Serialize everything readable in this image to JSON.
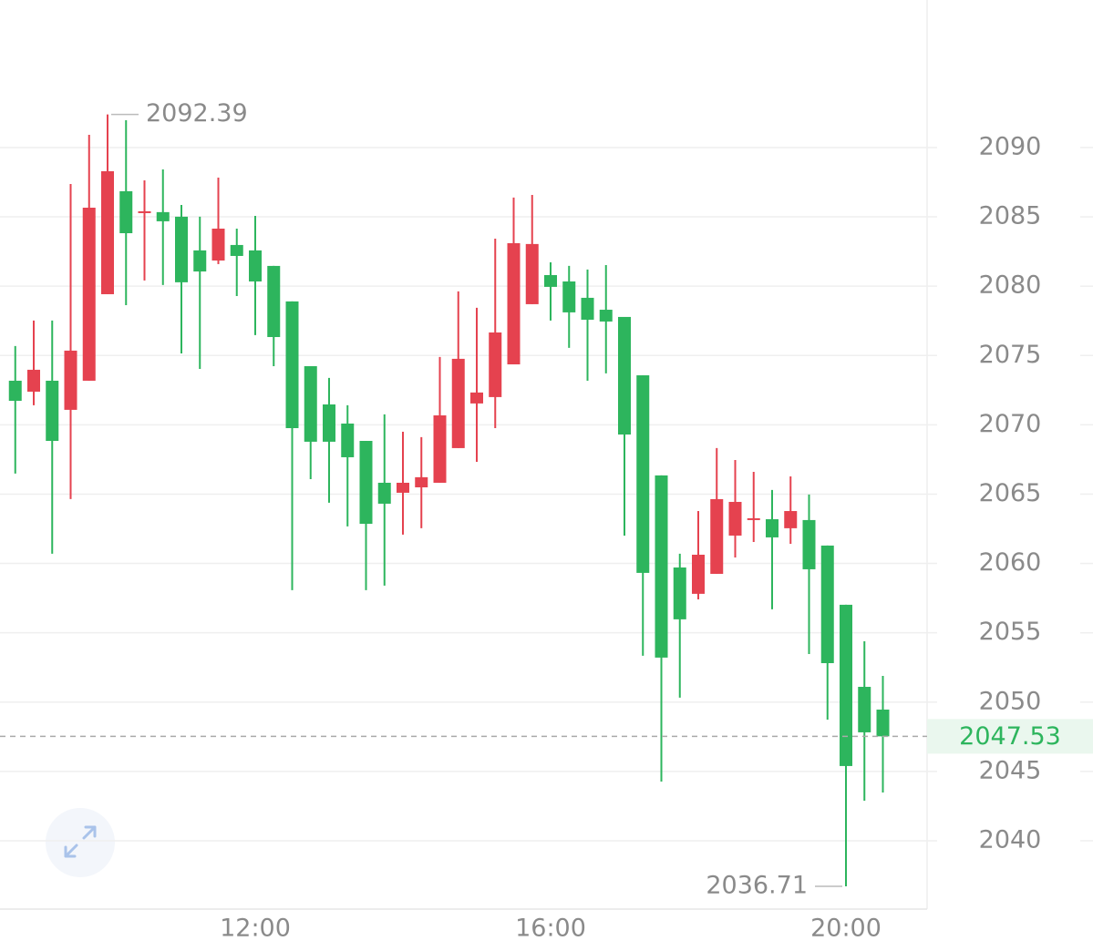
{
  "chart_data": {
    "type": "candlestick",
    "categories": [
      null,
      null,
      null,
      null,
      null,
      null,
      null,
      null,
      null,
      null,
      null,
      null,
      null,
      "12:00",
      null,
      null,
      null,
      null,
      null,
      null,
      null,
      null,
      null,
      null,
      null,
      null,
      null,
      null,
      null,
      "16:00",
      null,
      null,
      null,
      null,
      null,
      null,
      null,
      null,
      null,
      null,
      null,
      null,
      null,
      null,
      null,
      "20:00",
      null,
      null
    ],
    "open": [
      2073.18,
      2072.39,
      2073.18,
      2071.08,
      2073.18,
      2079.42,
      2086.85,
      2085.4,
      2085.34,
      2085.01,
      2082.58,
      2081.85,
      2082.97,
      2082.58,
      2081.46,
      2078.9,
      2074.23,
      2071.47,
      2070.09,
      2068.84,
      2065.82,
      2065.1,
      2065.49,
      2065.82,
      2068.32,
      2071.54,
      2072.0,
      2074.36,
      2078.7,
      2080.8,
      2080.34,
      2079.16,
      2078.3,
      2077.78,
      2073.57,
      2066.35,
      2059.71,
      2057.81,
      2059.25,
      2062.01,
      2063.26,
      2063.19,
      2062.54,
      2063.13,
      2061.29,
      2057.02,
      2051.1,
      2049.46
    ],
    "high": [
      2075.68,
      2077.52,
      2077.52,
      2087.37,
      2090.92,
      2092.39,
      2091.97,
      2087.63,
      2088.42,
      2085.86,
      2085.01,
      2087.83,
      2084.15,
      2085.07,
      2081.46,
      2078.9,
      2074.23,
      2073.38,
      2071.41,
      2068.84,
      2070.75,
      2069.5,
      2069.11,
      2074.89,
      2079.62,
      2078.44,
      2083.43,
      2086.39,
      2086.58,
      2081.72,
      2081.46,
      2081.2,
      2081.52,
      2077.78,
      2073.57,
      2066.35,
      2060.7,
      2063.78,
      2068.32,
      2067.46,
      2066.61,
      2065.3,
      2066.28,
      2064.97,
      2061.29,
      2057.02,
      2054.39,
      2051.89
    ],
    "low": [
      2066.48,
      2071.41,
      2060.7,
      2064.64,
      2073.18,
      2079.42,
      2078.63,
      2080.41,
      2080.08,
      2075.15,
      2074.03,
      2081.59,
      2079.29,
      2076.47,
      2074.23,
      2058.07,
      2066.08,
      2064.38,
      2062.67,
      2058.07,
      2058.4,
      2062.08,
      2062.54,
      2065.82,
      2068.32,
      2067.33,
      2069.76,
      2074.36,
      2078.7,
      2077.52,
      2075.55,
      2073.18,
      2073.71,
      2062.01,
      2053.34,
      2044.27,
      2050.32,
      2057.41,
      2059.25,
      2060.43,
      2061.55,
      2056.69,
      2061.42,
      2053.47,
      2048.74,
      2036.71,
      2042.89,
      2043.48
    ],
    "close": [
      2071.73,
      2073.97,
      2068.84,
      2075.35,
      2085.66,
      2088.29,
      2083.82,
      2085.4,
      2084.68,
      2080.28,
      2081.06,
      2084.15,
      2082.18,
      2080.34,
      2076.33,
      2069.76,
      2068.78,
      2068.78,
      2067.66,
      2062.86,
      2064.31,
      2065.82,
      2066.22,
      2070.68,
      2074.76,
      2072.33,
      2076.66,
      2083.1,
      2083.04,
      2079.95,
      2078.11,
      2077.58,
      2077.45,
      2069.3,
      2059.32,
      2053.21,
      2055.97,
      2060.63,
      2064.64,
      2064.44,
      2063.26,
      2061.88,
      2063.78,
      2059.58,
      2052.81,
      2045.39,
      2047.82,
      2047.53
    ],
    "up_color": "#e5424f",
    "down_color": "#2db55d",
    "ylim": [
      2035.07,
      2100.64
    ],
    "yticks": [
      2040,
      2045,
      2050,
      2055,
      2060,
      2065,
      2070,
      2075,
      2080,
      2085,
      2090
    ],
    "grid": true,
    "high_label": 2092.39,
    "low_label": 2036.71,
    "last_price": 2047.53
  }
}
